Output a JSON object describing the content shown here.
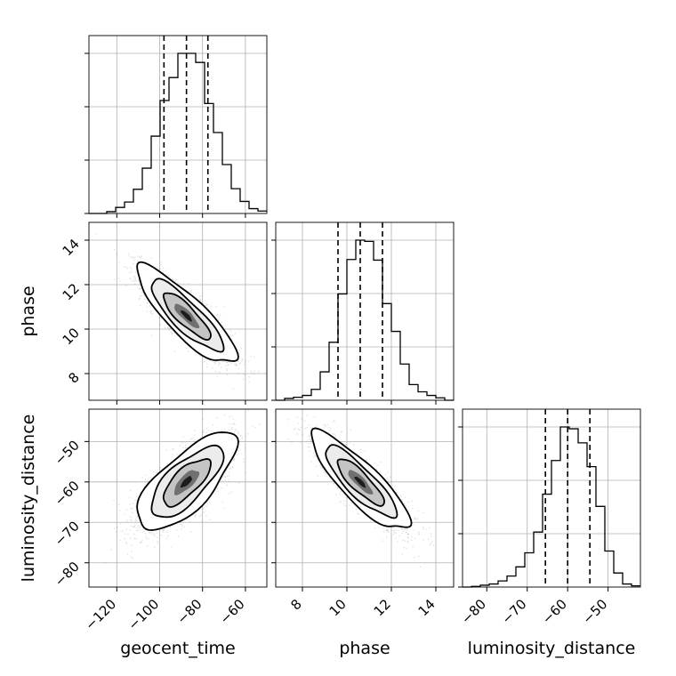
{
  "chart_data": {
    "type": "corner",
    "parameters": [
      "geocent_time",
      "phase",
      "luminosity_distance"
    ],
    "axis_labels": {
      "x": [
        "geocent_time",
        "phase",
        "luminosity_distance"
      ],
      "y": [
        "phase",
        "luminosity_distance"
      ]
    },
    "ranges": {
      "geocent_time": [
        -133,
        -50
      ],
      "phase": [
        6.8,
        14.8
      ],
      "luminosity_distance": [
        -86,
        -42
      ]
    },
    "ticks": {
      "geocent_time": [
        -120,
        -100,
        -80,
        -60
      ],
      "phase": [
        8,
        10,
        12,
        14
      ],
      "luminosity_distance": [
        -80,
        -70,
        -60,
        -50
      ]
    },
    "tick_labels": {
      "geocent_time": [
        "−120",
        "−100",
        "−80",
        "−60"
      ],
      "phase": [
        "8",
        "10",
        "12",
        "14"
      ],
      "luminosity_distance": [
        "−80",
        "−70",
        "−60",
        "−50"
      ]
    },
    "quantiles": {
      "geocent_time": [
        -98,
        -87.5,
        -77.5
      ],
      "phase": [
        9.6,
        10.6,
        11.6
      ],
      "luminosity_distance": [
        -65.5,
        -60,
        -54.5
      ]
    },
    "histograms": {
      "geocent_time": {
        "edges": [
          -133,
          -128.85,
          -124.7,
          -120.55,
          -116.4,
          -112.25,
          -108.1,
          -103.95,
          -99.8,
          -95.65,
          -91.5,
          -87.35,
          -83.2,
          -79.05,
          -74.9,
          -70.75,
          -66.6,
          -62.45,
          -58.3,
          -54.15,
          -50
        ],
        "counts": [
          0,
          0,
          3,
          10,
          19,
          40,
          75,
          128,
          187,
          225,
          265,
          265,
          250,
          182,
          134,
          81,
          41,
          20,
          8,
          4
        ]
      },
      "phase": {
        "edges": [
          6.8,
          7.2,
          7.6,
          8.0,
          8.4,
          8.8,
          9.2,
          9.6,
          10.0,
          10.4,
          10.8,
          11.2,
          11.6,
          12.0,
          12.4,
          12.8,
          13.2,
          13.6,
          14.0,
          14.4,
          14.8
        ],
        "counts": [
          0,
          3,
          5,
          8,
          18,
          47,
          96,
          176,
          233,
          265,
          263,
          232,
          160,
          114,
          60,
          26,
          14,
          8,
          4,
          0
        ]
      },
      "luminosity_distance": {
        "edges": [
          -86,
          -83.8,
          -81.6,
          -79.4,
          -77.2,
          -75,
          -72.8,
          -70.6,
          -68.4,
          -66.2,
          -64,
          -61.8,
          -59.6,
          -57.4,
          -55.2,
          -53,
          -50.8,
          -48.6,
          -46.4,
          -44.2,
          -42
        ],
        "counts": [
          0,
          1,
          3,
          5,
          10,
          18,
          33,
          56,
          90,
          152,
          207,
          262,
          259,
          236,
          197,
          132,
          59,
          23,
          5,
          2
        ]
      }
    },
    "correlations": {
      "phase_vs_geocent_time": -0.85,
      "luminosity_distance_vs_geocent_time": 0.72,
      "luminosity_distance_vs_phase": -0.85
    },
    "grid": true,
    "sample_color": "#808080",
    "contour_color": "#000000",
    "quantile_line_style": "dashed"
  }
}
